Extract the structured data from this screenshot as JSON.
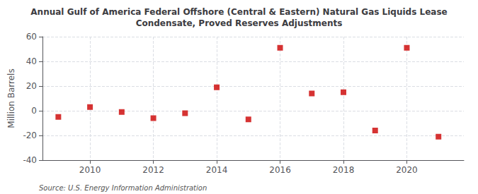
{
  "chart_data": {
    "type": "scatter",
    "title": "Annual Gulf of America Federal Offshore (Central & Eastern) Natural Gas Liquids Lease\nCondensate, Proved Reserves Adjustments",
    "ylabel": "Million Barrels",
    "annotations": [
      "Source: U.S. Energy Information Administration"
    ],
    "x": [
      2009,
      2010,
      2011,
      2012,
      2013,
      2014,
      2015,
      2016,
      2017,
      2018,
      2019,
      2020,
      2021
    ],
    "values": [
      -5,
      3,
      -1,
      -6,
      -2,
      19,
      -7,
      51,
      14,
      15,
      -16,
      51,
      -21
    ],
    "color": "#cc0000",
    "marker": "square",
    "xlim": [
      2008.5,
      2021.8
    ],
    "xticks": [
      2010,
      2012,
      2014,
      2016,
      2018,
      2020
    ],
    "ylim": [
      -40,
      60
    ],
    "yticks": [
      -40,
      -20,
      0,
      20,
      40,
      60
    ],
    "grid": true
  }
}
